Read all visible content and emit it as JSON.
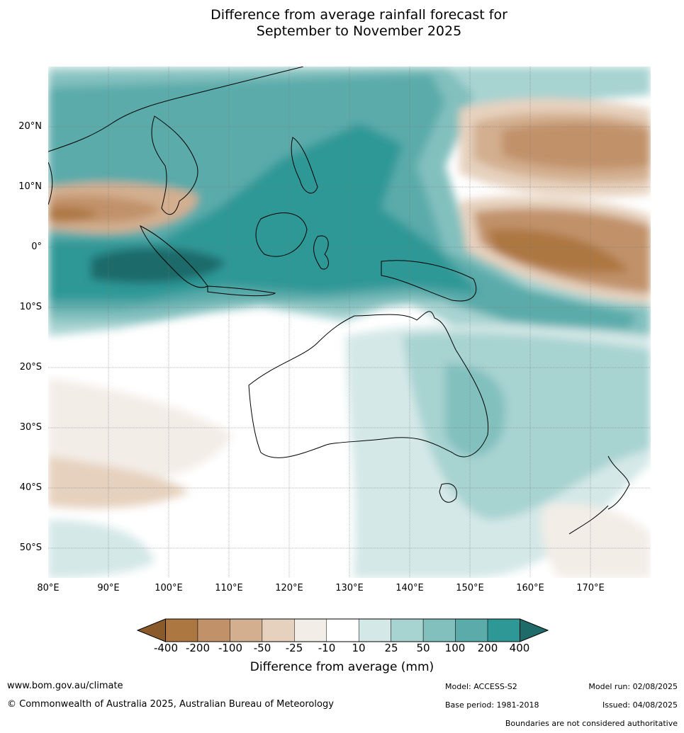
{
  "title_line1": "Difference from average rainfall forecast for",
  "title_line2": "September to November 2025",
  "lat_labels": [
    "20°N",
    "10°N",
    "0°",
    "10°S",
    "20°S",
    "30°S",
    "40°S",
    "50°S"
  ],
  "lon_labels": [
    "80°E",
    "90°E",
    "100°E",
    "110°E",
    "120°E",
    "130°E",
    "140°E",
    "150°E",
    "160°E",
    "170°E"
  ],
  "colorbar": {
    "labels": [
      "-400",
      "-200",
      "-100",
      "-50",
      "-25",
      "-10",
      "10",
      "25",
      "50",
      "100",
      "200",
      "400"
    ],
    "colors": [
      "#8b5a2b",
      "#ad7742",
      "#c1926a",
      "#d3af8f",
      "#e6d1be",
      "#f3ede7",
      "#ffffff",
      "#d4e8e7",
      "#a7d3d1",
      "#82c0be",
      "#5aabaa",
      "#2d9896",
      "#1f6b6a"
    ],
    "title": "Difference from average (mm)"
  },
  "footer": {
    "url": "www.bom.gov.au/climate",
    "copyright": "© Commonwealth of Australia 2025, Australian Bureau of Meteorology",
    "model": "Model: ACCESS-S2",
    "base_period": "Base period: 1981-2018",
    "model_run": "Model run: 02/08/2025",
    "issued": "Issued: 04/08/2025",
    "disclaimer": "Boundaries are not considered authoritative"
  }
}
